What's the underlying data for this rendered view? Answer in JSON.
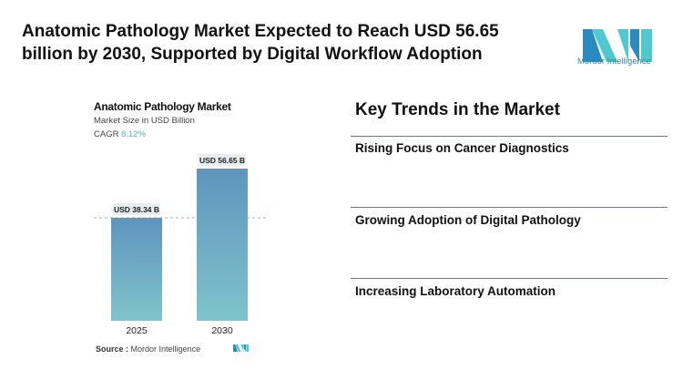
{
  "header": {
    "title": "Anatomic Pathology Market Expected to Reach USD 56.65 billion by 2030, Supported by Digital Workflow Adoption",
    "logo_text": "Mordor Intelligence"
  },
  "chart_data": {
    "type": "bar",
    "title": "Anatomic Pathology Market",
    "subtitle": "Market Size in USD Billion",
    "cagr_label": "CAGR",
    "cagr_value": "8.12%",
    "categories": [
      "2025",
      "2030"
    ],
    "values": [
      38.34,
      56.65
    ],
    "data_labels": [
      "USD 38.34 B",
      "USD 56.65 B"
    ],
    "ylim": [
      0,
      56.65
    ],
    "grid": false,
    "colors": {
      "bar_top": "#5f95bd",
      "bar_bottom": "#7fc4cc",
      "cagr": "#5ab6c0"
    },
    "source_label": "Source :",
    "source_value": "Mordor Intelligence"
  },
  "trends": {
    "title": "Key Trends in the Market",
    "items": [
      "Rising Focus on Cancer Diagnostics",
      "Growing Adoption of Digital Pathology",
      "Increasing Laboratory Automation"
    ],
    "accent": "#2a8fb0"
  }
}
